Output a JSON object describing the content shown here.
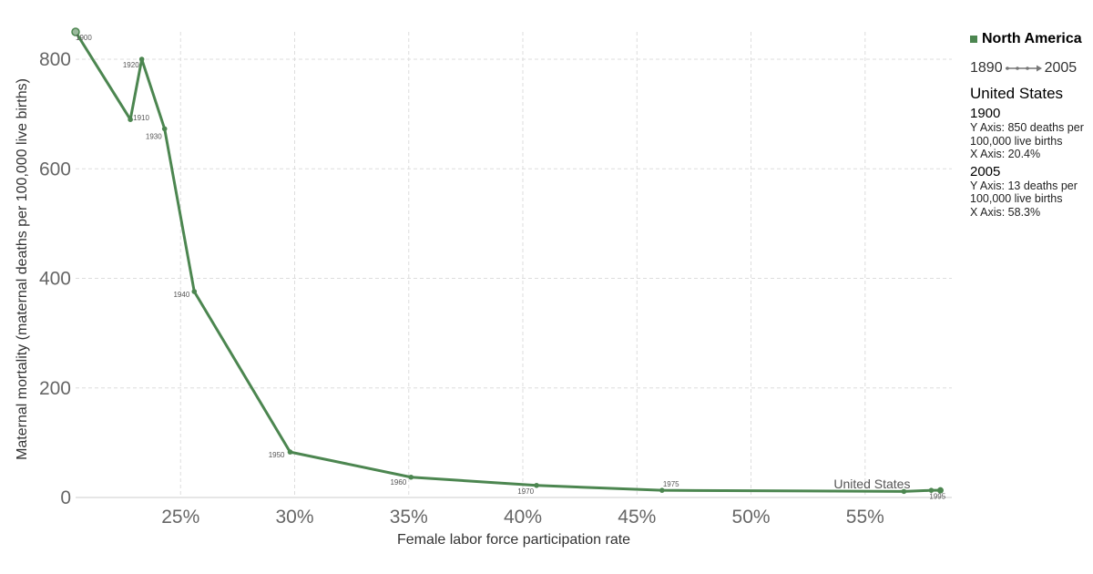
{
  "chart_data": {
    "type": "line",
    "xlabel": "Female labor force participation rate",
    "ylabel": "Maternal mortality (maternal deaths per 100,000 live births)",
    "x_ticks": [
      "25%",
      "30%",
      "35%",
      "40%",
      "45%",
      "50%",
      "55%"
    ],
    "y_ticks": [
      "0",
      "200",
      "400",
      "600",
      "800"
    ],
    "xlim": [
      20.4,
      58.8
    ],
    "ylim": [
      0,
      850
    ],
    "grid": true,
    "legend_position": "top-right",
    "series": [
      {
        "name": "United States",
        "color": "#4c8650",
        "points": [
          {
            "year": "1900",
            "x": 20.4,
            "y": 850,
            "label": "1900"
          },
          {
            "year": "1910",
            "x": 22.8,
            "y": 690,
            "label": "1910"
          },
          {
            "year": "1920",
            "x": 23.3,
            "y": 800,
            "label": "1920"
          },
          {
            "year": "1930",
            "x": 24.3,
            "y": 673,
            "label": "1930"
          },
          {
            "year": "1940",
            "x": 25.6,
            "y": 376,
            "label": "1940"
          },
          {
            "year": "1950",
            "x": 29.8,
            "y": 83,
            "label": "1950"
          },
          {
            "year": "1960",
            "x": 35.1,
            "y": 37,
            "label": "1960"
          },
          {
            "year": "1970",
            "x": 40.6,
            "y": 22,
            "label": "1970"
          },
          {
            "year": "1975",
            "x": 46.1,
            "y": 13,
            "label": "1975"
          },
          {
            "year": "1995",
            "x": 56.7,
            "y": 11,
            "label": "1995"
          },
          {
            "year": "2000",
            "x": 57.9,
            "y": 13,
            "label": ""
          },
          {
            "year": "2005",
            "x": 58.3,
            "y": 13,
            "label": ""
          }
        ]
      }
    ]
  },
  "legend": {
    "group_label": "North America",
    "group_color": "#4c8650"
  },
  "timeline": {
    "start": "1890",
    "end": "2005"
  },
  "info_panel": {
    "entity": "United States",
    "start": {
      "year": "1900",
      "y_text": "Y Axis: 850 deaths per 100,000 live births",
      "x_text": "X Axis: 20.4%"
    },
    "end": {
      "year": "2005",
      "y_text": "Y Axis: 13 deaths per 100,000 live births",
      "x_text": "X Axis: 58.3%"
    }
  }
}
